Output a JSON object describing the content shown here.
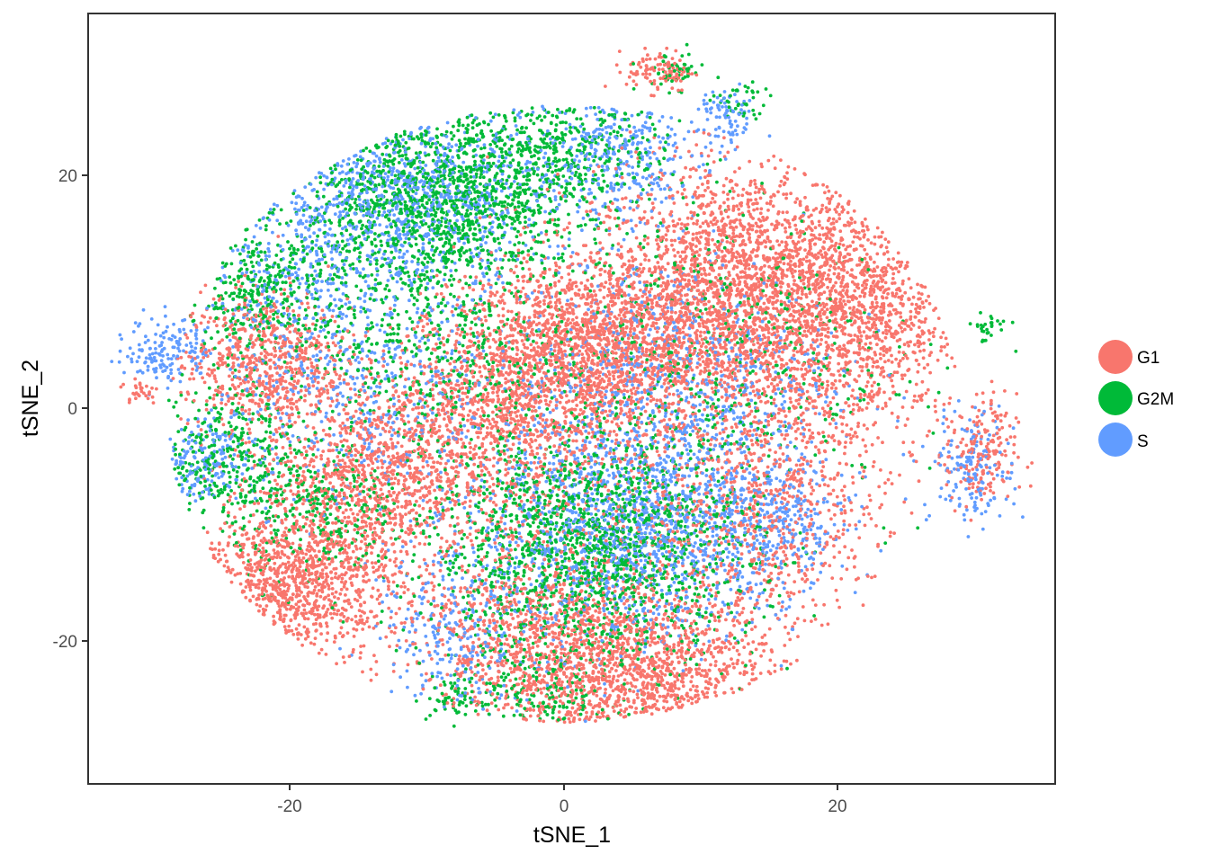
{
  "chart_data": {
    "type": "scatter",
    "title": "",
    "xlabel": "tSNE_1",
    "ylabel": "tSNE_2",
    "xlim": [
      -35,
      36
    ],
    "ylim": [
      -32,
      34
    ],
    "x_ticks": [
      -20,
      0,
      20
    ],
    "x_tick_labels": [
      "-20",
      "0",
      "20"
    ],
    "y_ticks": [
      -20,
      0,
      20
    ],
    "y_tick_labels": [
      "-20",
      "0",
      "20"
    ],
    "grid": false,
    "legend": {
      "position": "right",
      "items": [
        {
          "label": "G1",
          "color": "#F8766D"
        },
        {
          "label": "G2M",
          "color": "#00BA38"
        },
        {
          "label": "S",
          "color": "#619CFF"
        }
      ]
    },
    "series": [
      {
        "name": "G1",
        "color": "#F8766D",
        "clusters": [
          {
            "x": 13,
            "y": 10,
            "sx": 5.5,
            "sy": 5.5,
            "n": 2600
          },
          {
            "x": 22,
            "y": 8,
            "sx": 3.5,
            "sy": 6,
            "n": 1000
          },
          {
            "x": 6,
            "y": -23,
            "sx": 5,
            "sy": 3.5,
            "n": 1400
          },
          {
            "x": -20,
            "y": -15,
            "sx": 4,
            "sy": 3,
            "n": 1200
          },
          {
            "x": -14,
            "y": -6,
            "sx": 4,
            "sy": 3.5,
            "n": 900
          },
          {
            "x": -22,
            "y": 4,
            "sx": 3,
            "sy": 3,
            "n": 700
          },
          {
            "x": 2,
            "y": 5,
            "sx": 5,
            "sy": 4,
            "n": 1800
          },
          {
            "x": -5,
            "y": 0,
            "sx": 5,
            "sy": 4,
            "n": 900
          },
          {
            "x": -3,
            "y": -20,
            "sx": 4,
            "sy": 4,
            "n": 700
          },
          {
            "x": 15,
            "y": -8,
            "sx": 4,
            "sy": 5,
            "n": 700
          },
          {
            "x": 30.5,
            "y": -4,
            "sx": 1.3,
            "sy": 2.6,
            "n": 180
          },
          {
            "x": 7,
            "y": 29,
            "sx": 1.2,
            "sy": 0.9,
            "n": 110
          },
          {
            "x": -31,
            "y": 1.5,
            "sx": 0.7,
            "sy": 0.6,
            "n": 30
          },
          {
            "x": 0,
            "y": -12,
            "sx": 8,
            "sy": 6,
            "n": 600
          }
        ]
      },
      {
        "name": "G2M",
        "color": "#00BA38",
        "clusters": [
          {
            "x": -9,
            "y": 18,
            "sx": 5,
            "sy": 4,
            "n": 1500
          },
          {
            "x": 2,
            "y": -12,
            "sx": 6,
            "sy": 5,
            "n": 1800
          },
          {
            "x": -22,
            "y": 10,
            "sx": 3,
            "sy": 3,
            "n": 400
          },
          {
            "x": -25,
            "y": -4,
            "sx": 2.5,
            "sy": 3,
            "n": 350
          },
          {
            "x": 0,
            "y": 22,
            "sx": 4,
            "sy": 2.5,
            "n": 400
          },
          {
            "x": -10,
            "y": 5,
            "sx": 5,
            "sy": 5,
            "n": 500
          },
          {
            "x": 10,
            "y": 5,
            "sx": 7,
            "sy": 6,
            "n": 500
          },
          {
            "x": -18,
            "y": -9,
            "sx": 3,
            "sy": 3,
            "n": 300
          },
          {
            "x": -2,
            "y": -25,
            "sx": 3,
            "sy": 2,
            "n": 200
          },
          {
            "x": -8,
            "y": -25,
            "sx": 1,
            "sy": 1,
            "n": 60
          },
          {
            "x": 8,
            "y": 29,
            "sx": 1.2,
            "sy": 0.8,
            "n": 50
          },
          {
            "x": 13,
            "y": 26,
            "sx": 1,
            "sy": 1,
            "n": 40
          },
          {
            "x": 31,
            "y": 7,
            "sx": 0.8,
            "sy": 0.7,
            "n": 30
          }
        ]
      },
      {
        "name": "S",
        "color": "#619CFF",
        "clusters": [
          {
            "x": -12,
            "y": 18,
            "sx": 5.5,
            "sy": 4,
            "n": 1100
          },
          {
            "x": 5,
            "y": -10,
            "sx": 6,
            "sy": 5,
            "n": 1500
          },
          {
            "x": 4,
            "y": 22,
            "sx": 3,
            "sy": 3,
            "n": 400
          },
          {
            "x": -29,
            "y": 5,
            "sx": 1.5,
            "sy": 1.5,
            "n": 150
          },
          {
            "x": 30,
            "y": -5,
            "sx": 1.5,
            "sy": 2.5,
            "n": 160
          },
          {
            "x": 12,
            "y": 25,
            "sx": 1,
            "sy": 1.2,
            "n": 80
          },
          {
            "x": -27,
            "y": -5,
            "sx": 2,
            "sy": 2,
            "n": 200
          },
          {
            "x": 8,
            "y": 3,
            "sx": 6,
            "sy": 5,
            "n": 700
          },
          {
            "x": -15,
            "y": 2,
            "sx": 5,
            "sy": 5,
            "n": 500
          },
          {
            "x": -8,
            "y": -20,
            "sx": 3,
            "sy": 4,
            "n": 300
          },
          {
            "x": 15,
            "y": -10,
            "sx": 3,
            "sy": 3,
            "n": 300
          },
          {
            "x": -20,
            "y": 10,
            "sx": 3,
            "sy": 3,
            "n": 200
          }
        ]
      }
    ]
  }
}
